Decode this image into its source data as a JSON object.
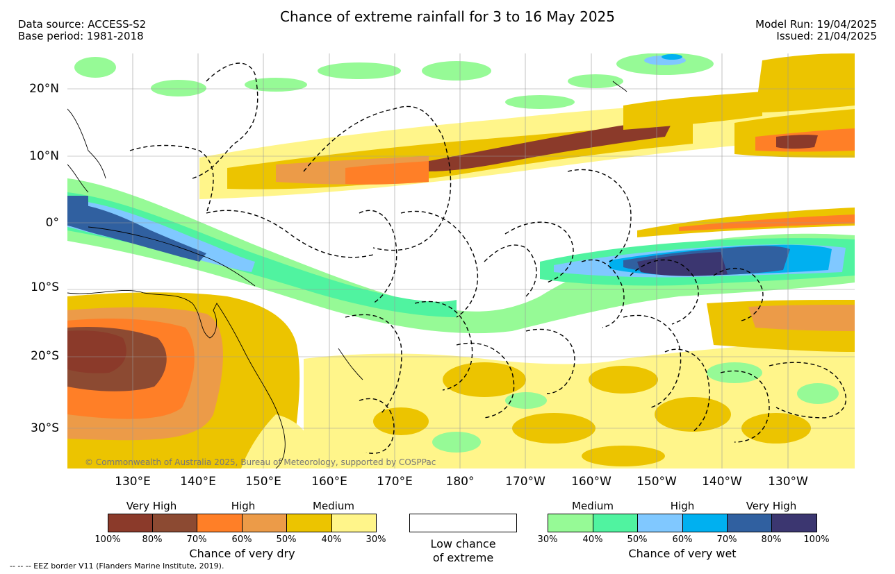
{
  "header": {
    "title": "Chance of extreme rainfall for 3 to 16 May 2025",
    "data_source": "Data source: ACCESS-S2",
    "base_period": "Base period: 1981-2018",
    "model_run": "Model Run: 19/04/2025",
    "issued": "Issued: 21/04/2025"
  },
  "map": {
    "lat_labels": [
      "20°N",
      "10°N",
      "0°",
      "10°S",
      "20°S",
      "30°S"
    ],
    "lon_labels": [
      "130°E",
      "140°E",
      "150°E",
      "160°E",
      "170°E",
      "180°",
      "170°W",
      "160°W",
      "150°W",
      "140°W",
      "130°W"
    ],
    "copyright": "© Commonwealth of Australia 2025, Bureau of Meteorology, supported by COSPPac",
    "colors": {
      "dry_100_80": "#8b3a2a",
      "dry_80_70": "#8c4a32",
      "dry_70_60": "#ff7f27",
      "dry_60_50": "#ec9b48",
      "dry_50_40": "#ecc400",
      "dry_40_30": "#fff58a",
      "wet_30_40": "#96fa96",
      "wet_40_50": "#50f3a0",
      "wet_50_60": "#80c8ff",
      "wet_60_70": "#00b0f0",
      "wet_70_80": "#3060a0",
      "wet_80_100": "#3b3670"
    }
  },
  "legend": {
    "dry": {
      "level_labels": [
        "Very High",
        "High",
        "Medium"
      ],
      "percents": [
        "100%",
        "80%",
        "70%",
        "60%",
        "50%",
        "40%",
        "30%"
      ],
      "caption": "Chance of very dry"
    },
    "low": {
      "caption_line1": "Low chance",
      "caption_line2": "of extreme"
    },
    "wet": {
      "level_labels": [
        "Medium",
        "High",
        "Very High"
      ],
      "percents": [
        "30%",
        "40%",
        "50%",
        "60%",
        "70%",
        "80%",
        "100%"
      ],
      "caption": "Chance of very wet"
    }
  },
  "footnote": "-- -- -- EEZ border V11 (Flanders Marine Institute, 2019)."
}
